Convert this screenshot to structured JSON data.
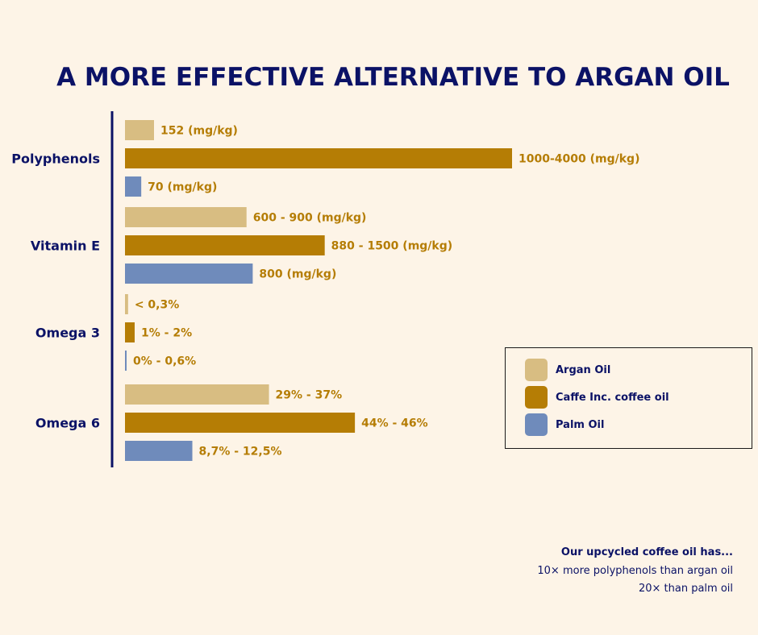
{
  "title": "A MORE EFFECTIVE ALTERNATIVE TO ARGAN OIL",
  "colors": {
    "background": "#fdf4e7",
    "argan": "#d8bd82",
    "coffee": "#b57d05",
    "palm": "#6f8bbb",
    "text_dark": "#0b1266",
    "label_value": "#b57d05"
  },
  "chart_data": {
    "type": "bar",
    "orientation": "horizontal",
    "title": "A MORE EFFECTIVE ALTERNATIVE TO ARGAN OIL",
    "xlabel": "",
    "ylabel": "",
    "categories": [
      "Polyphenols",
      "Vitamin E",
      "Omega 3",
      "Omega 6"
    ],
    "series": [
      {
        "name": "Argan Oil",
        "color": "#d8bd82",
        "values": [
          152,
          600,
          0.3,
          29
        ],
        "labels": [
          "152 (mg/kg)",
          "600 - 900 (mg/kg)",
          "< 0,3%",
          "29% - 37%"
        ]
      },
      {
        "name": "Caffe Inc. coffee oil",
        "color": "#b57d05",
        "values": [
          1000,
          880,
          1,
          44
        ],
        "labels": [
          "1000-4000 (mg/kg)",
          "880 - 1500 (mg/kg)",
          "1% - 2%",
          "44% - 46%"
        ]
      },
      {
        "name": "Palm Oil",
        "color": "#6f8bbb",
        "values": [
          70,
          800,
          0,
          8.7
        ],
        "labels": [
          "70 (mg/kg)",
          "800 (mg/kg)",
          "0% - 0,6%",
          "8,7% - 12,5%"
        ]
      }
    ],
    "relative_bar_lengths": [
      [
        0.075,
        1.0,
        0.042
      ],
      [
        0.314,
        0.516,
        0.33
      ],
      [
        0.008,
        0.025,
        0.002
      ],
      [
        0.372,
        0.594,
        0.174
      ]
    ],
    "legend_position": "right",
    "grid": false
  },
  "legend": [
    {
      "label": "Argan Oil",
      "color": "#d8bd82"
    },
    {
      "label": "Caffe Inc. coffee oil",
      "color": "#b57d05"
    },
    {
      "label": "Palm Oil",
      "color": "#6f8bbb"
    }
  ],
  "note": {
    "heading": "Our upcycled coffee oil has...",
    "line1": "10× more polyphenols than argan oil",
    "line2": "20× than palm oil"
  }
}
